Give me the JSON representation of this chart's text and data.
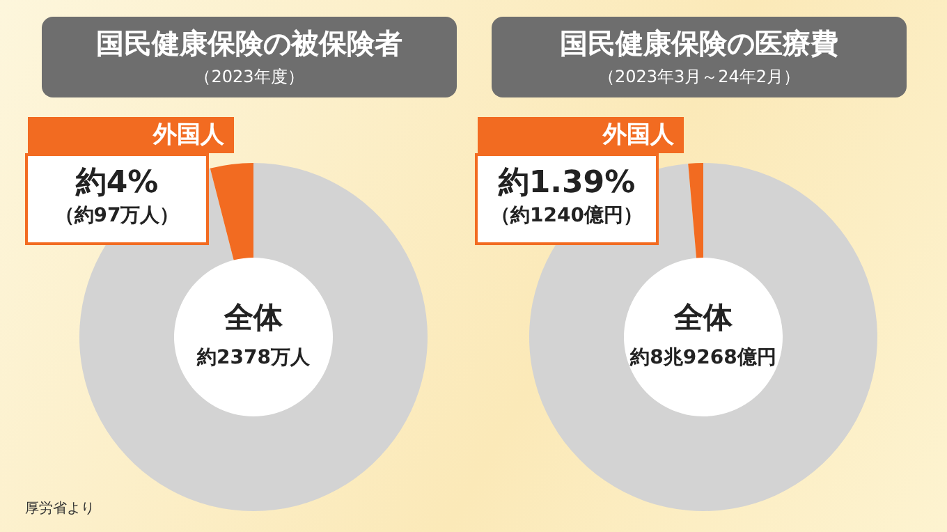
{
  "chart_data": [
    {
      "type": "donut",
      "title": "国民健康保険の被保険者",
      "subtitle": "（2023年度）",
      "categories": [
        null,
        "外国人"
      ],
      "values": [
        96,
        4
      ],
      "colors": [
        "#d3d3d3",
        "#f26b21"
      ],
      "annotations": [
        "約4%",
        "（約97万人）",
        "全体",
        "約2378万人",
        "厚労省より"
      ]
    },
    {
      "type": "donut",
      "title": "国民健康保険の医療費",
      "subtitle": "（2023年3月～24年2月）",
      "categories": [
        null,
        "外国人"
      ],
      "values": [
        98.61,
        1.39
      ],
      "colors": [
        "#d3d3d3",
        "#f26b21"
      ],
      "annotations": [
        "約1.39%",
        "（約1240億円）",
        "全体",
        "約8兆9268億円"
      ]
    }
  ]
}
